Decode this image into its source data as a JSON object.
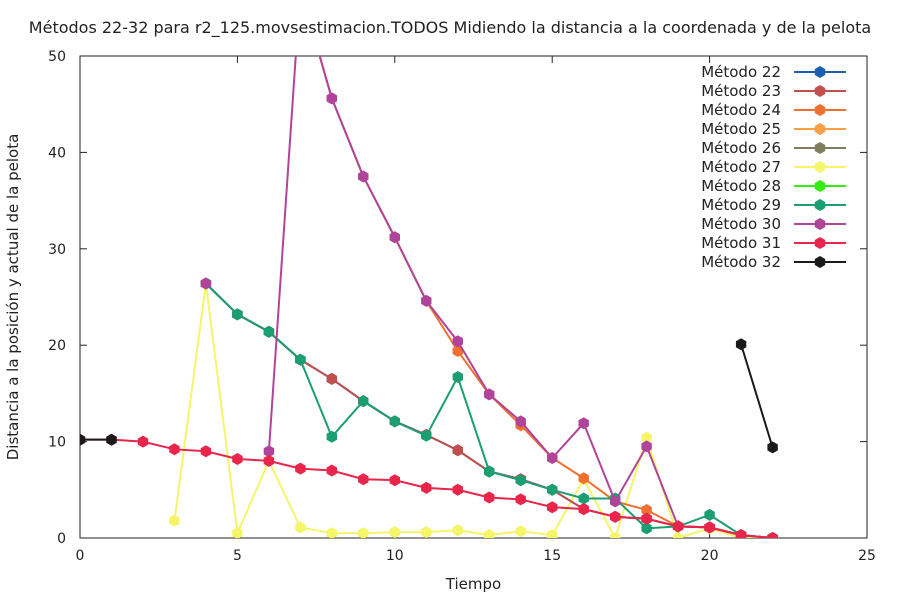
{
  "chart_data": {
    "type": "line",
    "title": "Métodos 22-32 para r2_125.movsestimacion.TODOS Midiendo la distancia a la coordenada y de la pelota",
    "xlabel": "Tiempo",
    "ylabel": "Distancia a la posición y actual de la pelota",
    "xlim": [
      0,
      25
    ],
    "ylim": [
      0,
      50
    ],
    "xticks": [
      0,
      5,
      10,
      15,
      20,
      25
    ],
    "yticks": [
      0,
      10,
      20,
      30,
      40,
      50
    ],
    "grid": false,
    "legend_position": "top-right",
    "x": [
      0,
      1,
      2,
      3,
      4,
      5,
      6,
      7,
      8,
      9,
      10,
      11,
      12,
      13,
      14,
      15,
      16,
      17,
      18,
      19,
      20,
      21,
      22
    ],
    "series": [
      {
        "name": "Método 22",
        "color": "#1f5fb0",
        "values": [
          null,
          null,
          null,
          null,
          26.4,
          23.2,
          21.4,
          18.5,
          16.5,
          14.2,
          12.1,
          10.7,
          9.1,
          6.9,
          6.1,
          5.0,
          3.0,
          2.2,
          2.0,
          1.2,
          1.1,
          0.3,
          0.0
        ]
      },
      {
        "name": "Método 23",
        "color": "#c0504d",
        "values": [
          null,
          null,
          null,
          null,
          26.4,
          23.2,
          21.4,
          18.5,
          16.5,
          14.2,
          12.1,
          10.7,
          9.1,
          6.9,
          6.1,
          5.0,
          3.0,
          2.2,
          2.0,
          1.2,
          1.1,
          0.3,
          0.0
        ]
      },
      {
        "name": "Método 24",
        "color": "#f07030",
        "values": [
          null,
          null,
          null,
          null,
          null,
          null,
          null,
          57.0,
          45.6,
          37.5,
          31.2,
          24.6,
          19.4,
          14.9,
          11.7,
          8.3,
          6.2,
          3.8,
          2.9,
          1.2,
          1.1,
          0.3,
          0.0
        ]
      },
      {
        "name": "Método 25",
        "color": "#f8a048",
        "values": [
          null,
          null,
          null,
          null,
          null,
          null,
          null,
          null,
          null,
          null,
          null,
          null,
          null,
          null,
          null,
          null,
          null,
          null,
          null,
          null,
          null,
          null,
          null
        ]
      },
      {
        "name": "Método 26",
        "color": "#7f7f5f",
        "values": [
          null,
          null,
          null,
          null,
          null,
          null,
          null,
          null,
          null,
          null,
          null,
          null,
          null,
          null,
          null,
          null,
          null,
          null,
          null,
          null,
          null,
          null,
          null
        ]
      },
      {
        "name": "Método 27",
        "color": "#f5f56a",
        "values": [
          null,
          null,
          null,
          1.8,
          26.4,
          0.5,
          8.0,
          1.1,
          0.5,
          0.5,
          0.6,
          0.6,
          0.8,
          0.3,
          0.7,
          0.3,
          6.1,
          0.0,
          10.4,
          0.0,
          1.0,
          0.0,
          0.0
        ]
      },
      {
        "name": "Método 28",
        "color": "#33ee11",
        "values": [
          null,
          null,
          null,
          null,
          null,
          null,
          null,
          null,
          null,
          null,
          null,
          null,
          null,
          null,
          null,
          null,
          null,
          null,
          null,
          null,
          null,
          null,
          null
        ]
      },
      {
        "name": "Método 29",
        "color": "#1a9e72",
        "values": [
          null,
          null,
          null,
          null,
          26.4,
          23.2,
          21.4,
          18.5,
          10.5,
          14.2,
          12.1,
          10.6,
          16.7,
          6.9,
          6.0,
          5.0,
          4.1,
          4.1,
          1.0,
          1.2,
          2.4,
          0.3,
          0.0
        ]
      },
      {
        "name": "Método 30",
        "color": "#b0449a",
        "values": [
          null,
          null,
          null,
          null,
          26.4,
          null,
          9.0,
          57.0,
          45.6,
          37.5,
          31.2,
          24.6,
          20.4,
          14.9,
          12.1,
          8.3,
          11.9,
          3.8,
          9.5,
          1.2,
          1.1,
          0.3,
          0.0
        ]
      },
      {
        "name": "Método 31",
        "color": "#e8254a",
        "values": [
          10.2,
          10.2,
          10.0,
          9.2,
          9.0,
          8.2,
          8.0,
          7.2,
          7.0,
          6.1,
          6.0,
          5.2,
          5.0,
          4.2,
          4.0,
          3.2,
          3.0,
          2.2,
          2.0,
          1.2,
          1.1,
          0.3,
          0.0
        ]
      },
      {
        "name": "Método 32",
        "color": "#1a1a1a",
        "values": [
          10.2,
          10.2,
          null,
          null,
          null,
          null,
          null,
          null,
          null,
          null,
          null,
          null,
          null,
          null,
          null,
          null,
          null,
          null,
          null,
          null,
          null,
          20.1,
          9.4
        ]
      }
    ]
  }
}
